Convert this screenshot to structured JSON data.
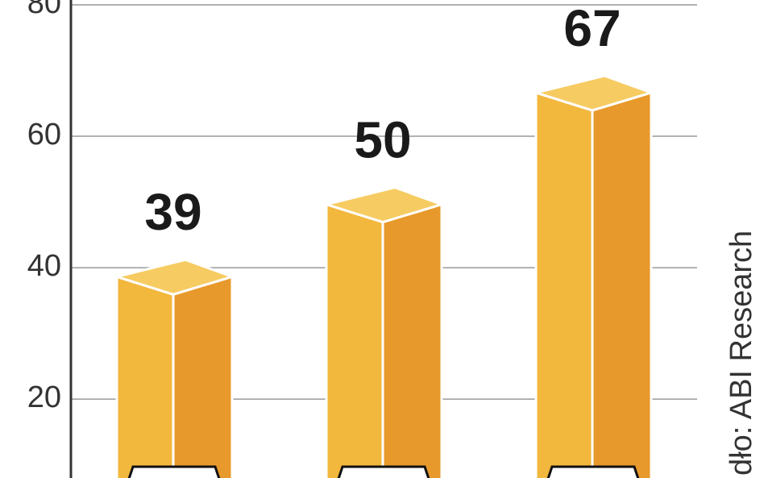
{
  "chart_data": {
    "type": "bar3d",
    "categories": [
      null,
      null,
      null
    ],
    "values": [
      39,
      50,
      67
    ],
    "colors": {
      "top": "#f6cb62",
      "left": "#f2b73d",
      "right": "#e8992b"
    },
    "ylim": [
      8,
      80
    ],
    "yticks": [
      20,
      40,
      60,
      80
    ],
    "grid": true,
    "source": "dło: ABI Research"
  }
}
